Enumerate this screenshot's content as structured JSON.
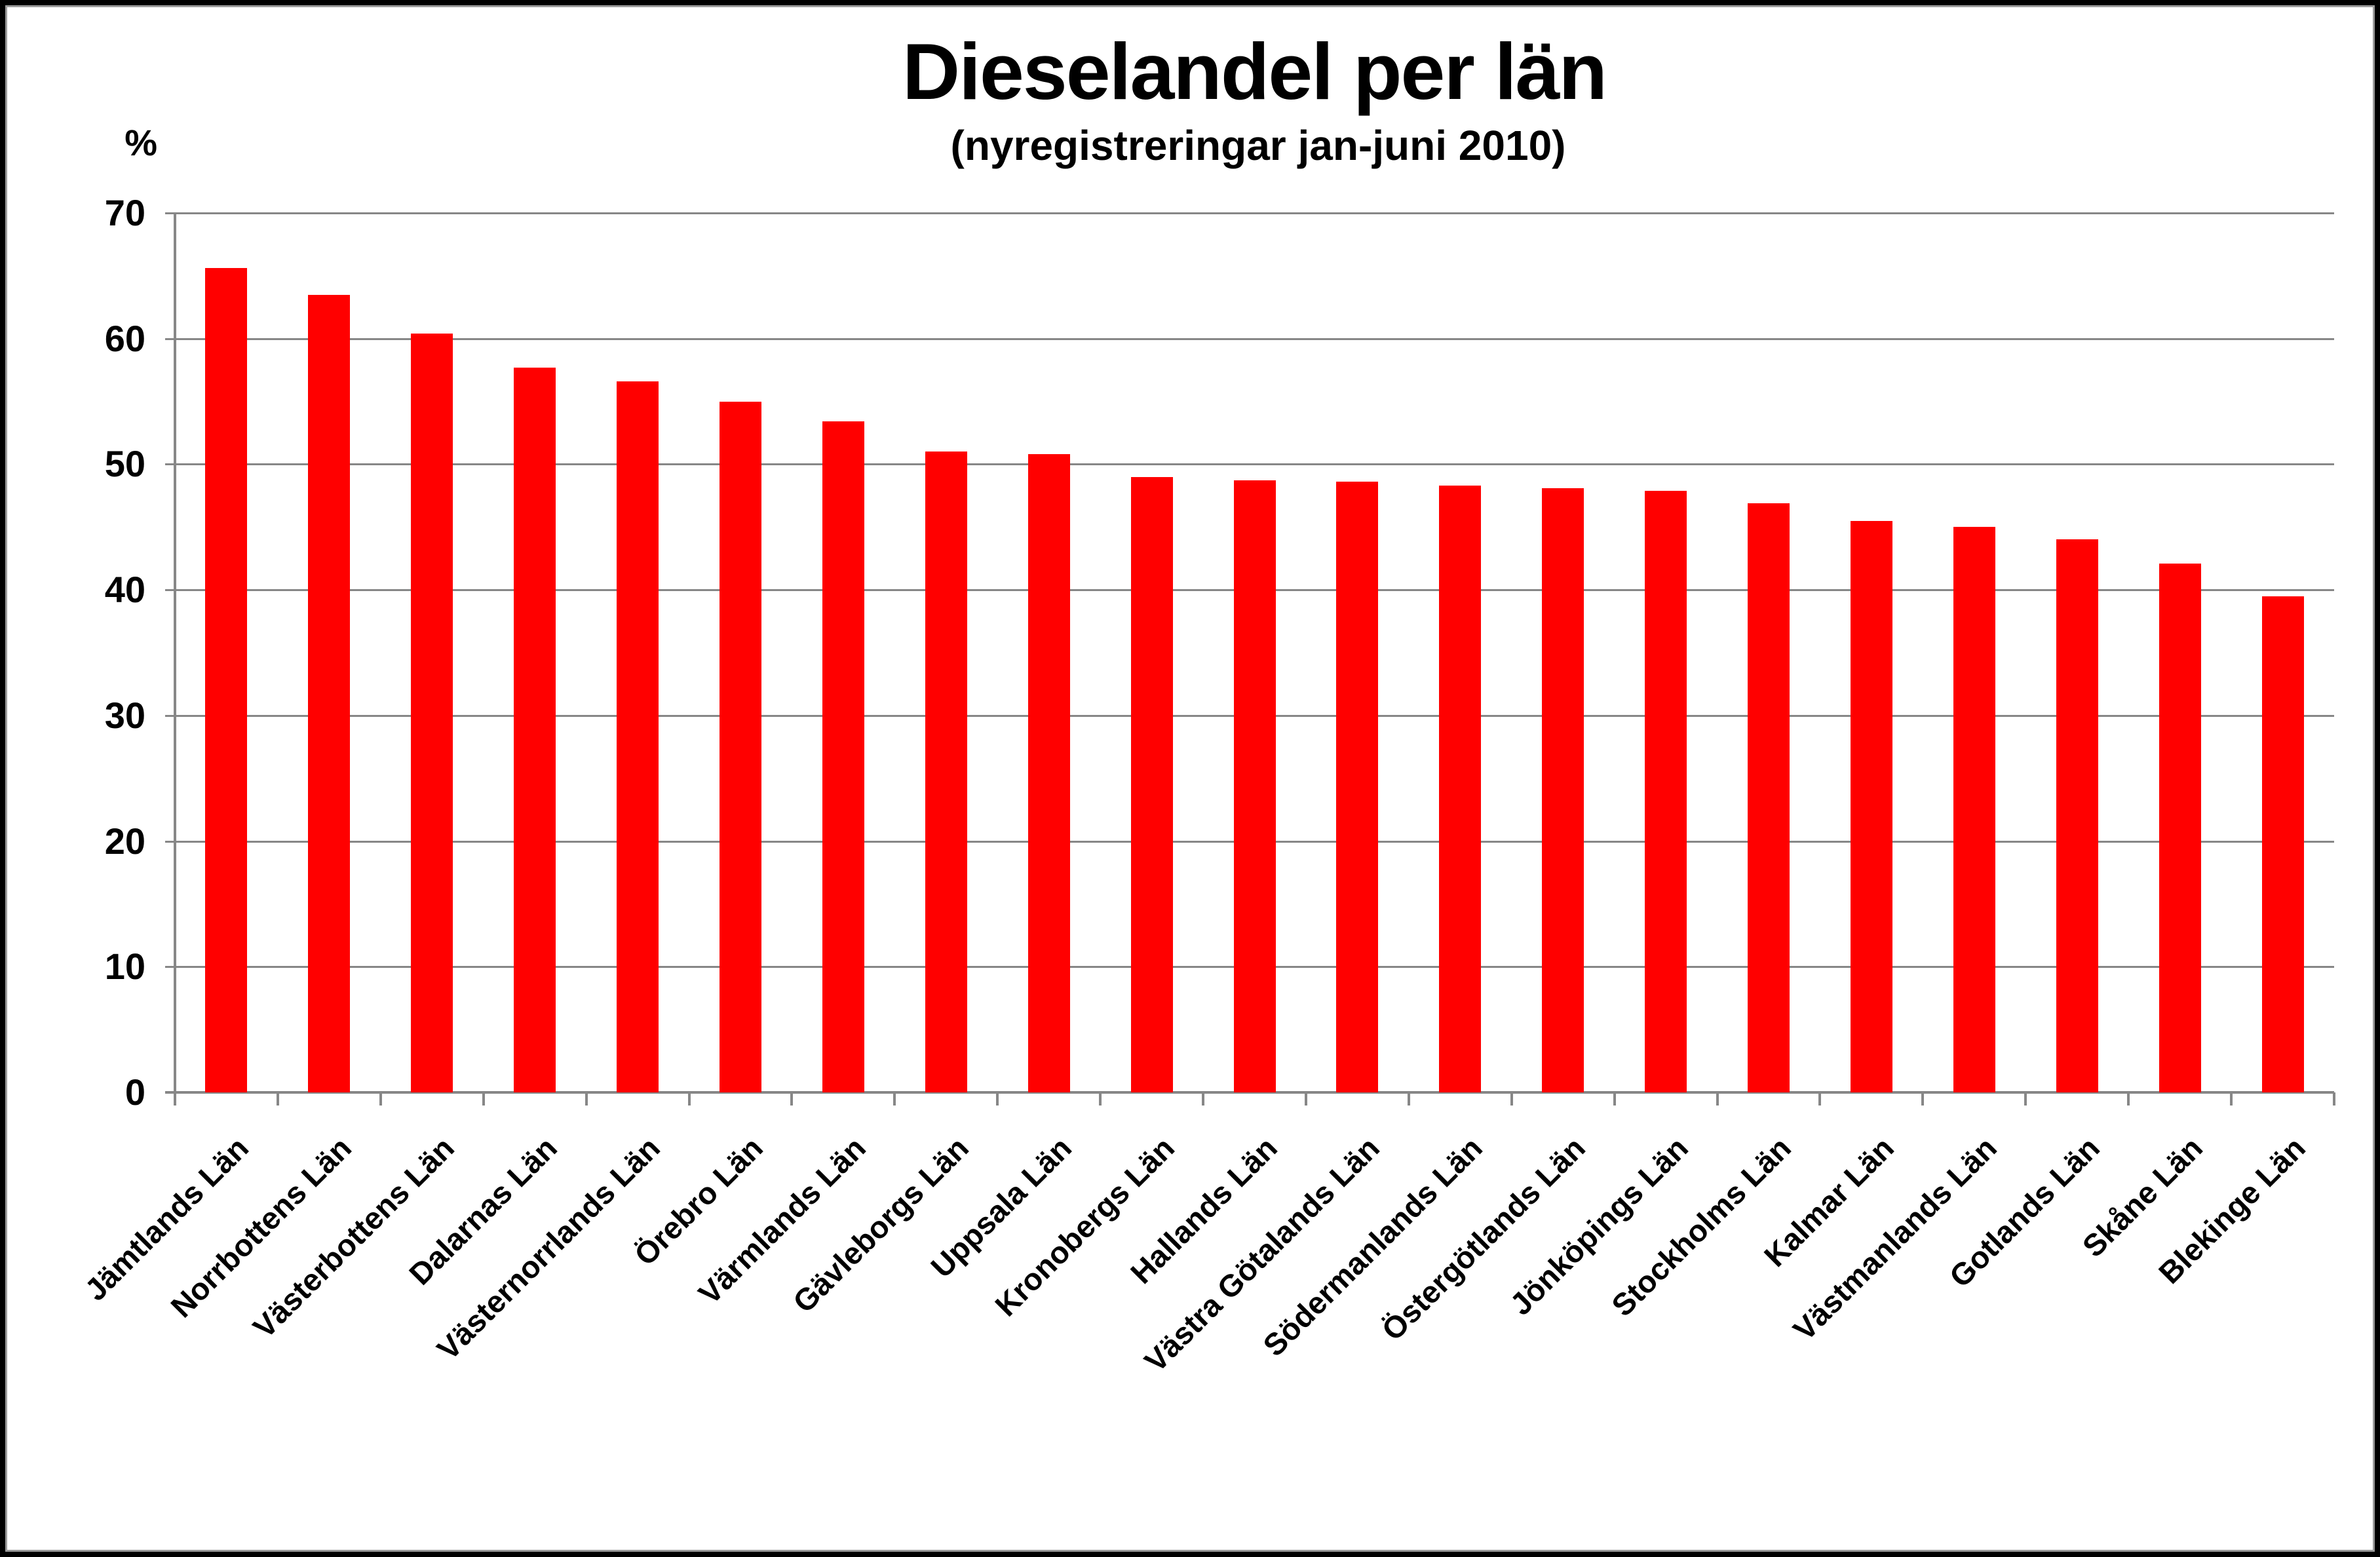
{
  "frame": {
    "border_color": "#000000",
    "inner_edge_color": "#9b9b9b",
    "background": "#ffffff"
  },
  "chart_data": {
    "type": "bar",
    "title": "Dieselandel per län",
    "subtitle": "(nyregistreringar jan-juni 2010)",
    "y_axis_unit_label": "%",
    "categories": [
      "Jämtlands Län",
      "Norrbottens Län",
      "Västerbottens Län",
      "Dalarnas Län",
      "Västernorrlands Län",
      "Örebro Län",
      "Värmlands Län",
      "Gävleborgs Län",
      "Uppsala Län",
      "Kronobergs Län",
      "Hallands Län",
      "Västra Götalands Län",
      "Södermanlands Län",
      "Östergötlands Län",
      "Jönköpings Län",
      "Stockholms Län",
      "Kalmar Län",
      "Västmanlands Län",
      "Gotlands Län",
      "Skåne Län",
      "Blekinge Län"
    ],
    "values": [
      65.6,
      63.5,
      60.4,
      57.7,
      56.6,
      55.0,
      53.4,
      51.0,
      50.8,
      49.0,
      48.7,
      48.6,
      48.3,
      48.1,
      47.9,
      46.9,
      45.5,
      45.0,
      44.0,
      42.1,
      39.5
    ],
    "ylim": [
      0,
      70
    ],
    "y_ticks": [
      0,
      10,
      20,
      30,
      40,
      50,
      60,
      70
    ],
    "grid": true,
    "legend": "none",
    "bar_color": "#ff0000",
    "grid_color": "#878787",
    "text_color": "#000000"
  }
}
